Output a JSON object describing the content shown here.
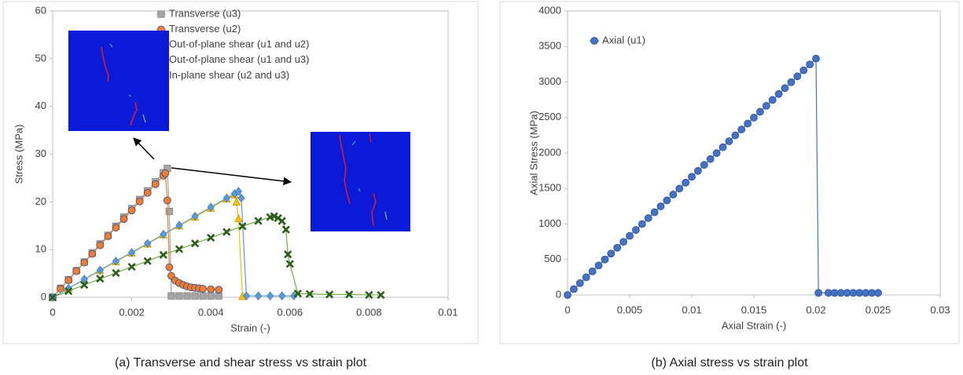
{
  "chart_data": [
    {
      "type": "scatter",
      "title": "(a) Transverse and shear stress vs strain plot",
      "x_label": "Strain (-)",
      "y_label": "Stress (MPa)",
      "xlim": [
        0,
        0.01
      ],
      "xticks": [
        0,
        0.002,
        0.004,
        0.006,
        0.008,
        0.01
      ],
      "ylim": [
        0,
        60
      ],
      "yticks": [
        0,
        10,
        20,
        30,
        40,
        50,
        60
      ],
      "legend": "upper center",
      "series": [
        {
          "name": "Transverse (u3)",
          "color": "#a5a5a5",
          "marker": "square",
          "x": [
            0,
            0.0002,
            0.0004,
            0.0006,
            0.0008,
            0.001,
            0.0012,
            0.0014,
            0.0016,
            0.0018,
            0.002,
            0.0022,
            0.0024,
            0.0026,
            0.0028,
            0.0029,
            0.00295,
            0.003,
            0.0032,
            0.0034,
            0.0036,
            0.0038,
            0.004,
            0.0042
          ],
          "values": [
            0,
            1.9,
            3.7,
            5.6,
            7.4,
            9.3,
            11.2,
            13,
            14.9,
            16.8,
            18.6,
            20.5,
            22.3,
            24.2,
            26.1,
            27,
            18,
            0.3,
            0.3,
            0.3,
            0.3,
            0.3,
            0.3,
            0.3
          ]
        },
        {
          "name": "Transverse (u2)",
          "color": "#ed7d31",
          "marker": "circle",
          "x": [
            0,
            0.0002,
            0.0004,
            0.0006,
            0.0008,
            0.001,
            0.0012,
            0.0014,
            0.0016,
            0.0018,
            0.002,
            0.0022,
            0.0024,
            0.0026,
            0.0028,
            0.00285,
            0.0029,
            0.00295,
            0.003,
            0.0031,
            0.0032,
            0.0033,
            0.0034,
            0.0035,
            0.0036,
            0.0037,
            0.0038,
            0.004,
            0.0042
          ],
          "values": [
            0,
            1.8,
            3.6,
            5.5,
            7.3,
            9.1,
            10.9,
            12.8,
            14.6,
            16.4,
            18.2,
            20.1,
            21.9,
            23.7,
            25.5,
            26,
            20.3,
            6.3,
            4.5,
            3.5,
            3,
            2.6,
            2.3,
            2.1,
            2,
            1.9,
            1.8,
            1.7,
            1.6
          ]
        },
        {
          "name": "Out-of-plane shear (u1 and u2)",
          "color": "#ffc000",
          "marker": "triangle",
          "x": [
            0,
            0.0004,
            0.0008,
            0.0012,
            0.0016,
            0.002,
            0.0024,
            0.0028,
            0.0032,
            0.0036,
            0.004,
            0.0044,
            0.0046,
            0.00465,
            0.0047,
            0.0048
          ],
          "values": [
            0,
            1.9,
            3.7,
            5.6,
            7.5,
            9.3,
            11.2,
            13.1,
            15,
            16.8,
            18.7,
            20.6,
            21.5,
            20,
            16.5,
            0.2
          ]
        },
        {
          "name": "Out-of-plane shear (u1 and u3)",
          "color": "#5b9bd5",
          "marker": "diamond",
          "x": [
            0,
            0.0004,
            0.0008,
            0.0012,
            0.0016,
            0.002,
            0.0024,
            0.0028,
            0.0032,
            0.0036,
            0.004,
            0.0044,
            0.0046,
            0.0047,
            0.00477,
            0.0049,
            0.0052,
            0.0055,
            0.0058,
            0.0061
          ],
          "values": [
            0,
            1.9,
            3.8,
            5.7,
            7.6,
            9.4,
            11.3,
            13.2,
            15.1,
            17,
            18.9,
            20.8,
            21.7,
            22.2,
            20.8,
            0.3,
            0.3,
            0.3,
            0.3,
            0.3
          ]
        },
        {
          "name": "In-plane shear (u2 and u3)",
          "color": "#70ad47",
          "marker": "cross",
          "x": [
            0,
            0.0004,
            0.0008,
            0.0012,
            0.0016,
            0.002,
            0.0024,
            0.0028,
            0.0032,
            0.0036,
            0.004,
            0.0044,
            0.0048,
            0.0052,
            0.0055,
            0.0056,
            0.0057,
            0.0058,
            0.0059,
            0.00595,
            0.006,
            0.0062,
            0.0065,
            0.007,
            0.0075,
            0.008,
            0.0083
          ],
          "values": [
            0,
            1.3,
            2.6,
            3.9,
            5.1,
            6.4,
            7.6,
            8.9,
            10.1,
            11.3,
            12.5,
            13.7,
            14.9,
            16,
            16.8,
            17,
            16.6,
            16,
            14.2,
            9,
            7,
            0.8,
            0.7,
            0.6,
            0.6,
            0.5,
            0.5
          ]
        }
      ]
    },
    {
      "type": "scatter",
      "title": "(b) Axial stress vs strain plot",
      "x_label": "Axial Strain (-)",
      "y_label": "Axial Stress (MPa)",
      "xlim": [
        0,
        0.03
      ],
      "xticks": [
        0,
        0.005,
        0.01,
        0.015,
        0.02,
        0.025,
        0.03
      ],
      "ylim": [
        0,
        4000
      ],
      "yticks": [
        0,
        500,
        1000,
        1500,
        2000,
        2500,
        3000,
        3500,
        4000
      ],
      "legend": "upper left",
      "series": [
        {
          "name": "Axial (u1)",
          "color": "#4472c4",
          "marker": "circle",
          "x": [
            0,
            0.0005,
            0.001,
            0.0015,
            0.002,
            0.0025,
            0.003,
            0.0035,
            0.004,
            0.0045,
            0.005,
            0.0055,
            0.006,
            0.0065,
            0.007,
            0.0075,
            0.008,
            0.0085,
            0.009,
            0.0095,
            0.01,
            0.0105,
            0.011,
            0.0115,
            0.012,
            0.0125,
            0.013,
            0.0135,
            0.014,
            0.0145,
            0.015,
            0.0155,
            0.016,
            0.0165,
            0.017,
            0.0175,
            0.018,
            0.0185,
            0.019,
            0.0195,
            0.02,
            0.0202,
            0.021,
            0.0215,
            0.022,
            0.0225,
            0.023,
            0.0235,
            0.024,
            0.0245,
            0.025
          ],
          "values": [
            0,
            83,
            167,
            250,
            333,
            416,
            500,
            583,
            666,
            749,
            833,
            916,
            999,
            1082,
            1166,
            1249,
            1332,
            1415,
            1499,
            1582,
            1665,
            1748,
            1832,
            1915,
            1998,
            2081,
            2165,
            2248,
            2331,
            2414,
            2498,
            2581,
            2664,
            2747,
            2831,
            2914,
            2997,
            3080,
            3164,
            3247,
            3330,
            30,
            30,
            30,
            30,
            30,
            30,
            30,
            30,
            30,
            30
          ]
        }
      ]
    }
  ]
}
